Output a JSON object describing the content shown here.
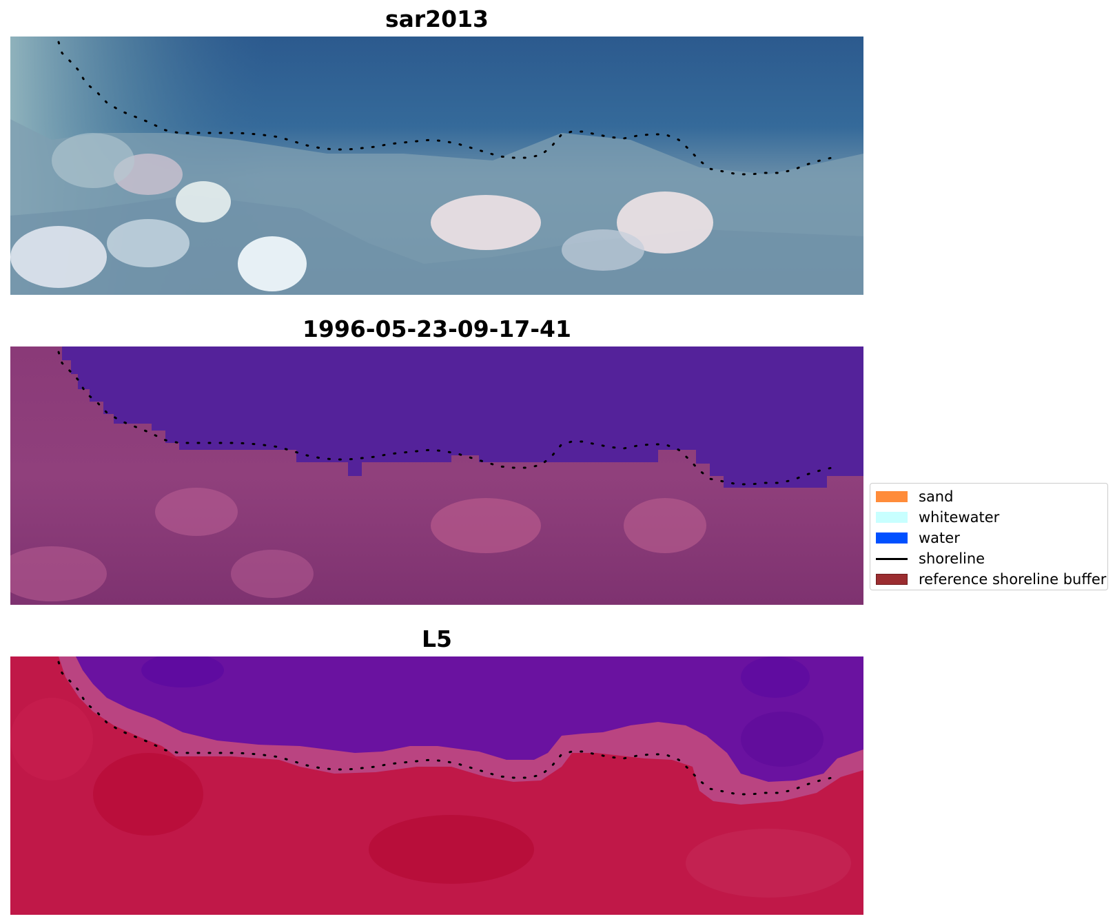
{
  "panels": [
    {
      "title": "sar2013",
      "image": "true-color satellite image of coastline with detected shoreline points"
    },
    {
      "title": "1996-05-23-09-17-41",
      "image": "classified image with water overlay and shoreline points"
    },
    {
      "title": "L5",
      "image": "index image (water in purple, land in red) with shoreline points"
    }
  ],
  "legend": {
    "items": [
      {
        "label": "sand",
        "color": "#ff8c3a",
        "kind": "patch"
      },
      {
        "label": "whitewater",
        "color": "#c8ffff",
        "kind": "patch"
      },
      {
        "label": "water",
        "color": "#0050ff",
        "kind": "patch"
      },
      {
        "label": "shoreline",
        "color": "#000000",
        "kind": "line"
      },
      {
        "label": "reference shoreline buffer",
        "color": "#9b2d30",
        "kind": "patch"
      }
    ]
  },
  "colors": {
    "background": "#ffffff",
    "legend_border": "#cccccc",
    "panel1_water": "#2a5a8c",
    "panel2_water": "#54229a",
    "panel2_land": "#8a3a78",
    "panel3_water": "#6a12a0",
    "panel3_land": "#c01848"
  }
}
